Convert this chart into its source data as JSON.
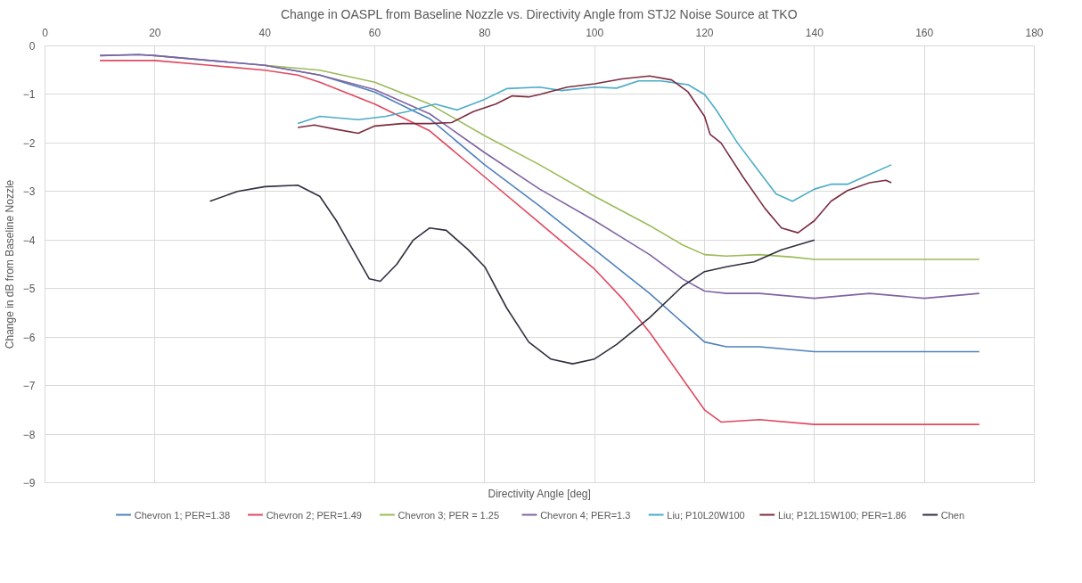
{
  "chart_data": {
    "type": "line",
    "title": "Change in OASPL from Baseline Nozzle vs. Directivity Angle from STJ2 Noise Source at TKO",
    "xlabel": "Directivity Angle [deg]",
    "ylabel": "Change in dB from Baseline Nozzle",
    "xlim": [
      0,
      180
    ],
    "xticks": [
      0,
      20,
      40,
      60,
      80,
      100,
      120,
      140,
      160,
      180
    ],
    "ylim": [
      -9,
      0
    ],
    "yticks": [
      -9,
      -8,
      -7,
      -6,
      -5,
      -4,
      -3,
      -2,
      -1,
      0
    ],
    "grid": true,
    "legend": "bottom",
    "marker": "none",
    "line_style": "solid",
    "series": [
      {
        "name": "Chevron 1; PER=1.38",
        "color": "#4f81bd",
        "x": [
          10,
          17,
          20,
          30,
          40,
          50,
          60,
          70,
          80,
          90,
          100,
          110,
          116,
          120,
          124,
          130,
          140,
          150,
          160,
          170
        ],
        "values": [
          -0.2,
          -0.18,
          -0.2,
          -0.3,
          -0.4,
          -0.6,
          -0.95,
          -1.5,
          -2.45,
          -3.3,
          -4.2,
          -5.1,
          -5.7,
          -6.1,
          -6.2,
          -6.2,
          -6.3,
          -6.3,
          -6.3,
          -6.3
        ]
      },
      {
        "name": "Chevron 2; PER=1.49",
        "color": "#e0485f",
        "x": [
          10,
          20,
          30,
          40,
          46,
          50,
          60,
          70,
          80,
          90,
          100,
          105,
          110,
          115,
          120,
          123,
          130,
          140,
          150,
          160,
          170
        ],
        "values": [
          -0.3,
          -0.3,
          -0.4,
          -0.5,
          -0.6,
          -0.75,
          -1.2,
          -1.75,
          -2.7,
          -3.65,
          -4.6,
          -5.2,
          -5.9,
          -6.7,
          -7.5,
          -7.75,
          -7.7,
          -7.8,
          -7.8,
          -7.8,
          -7.8
        ]
      },
      {
        "name": "Chevron 3; PER = 1.25",
        "color": "#9bbb59",
        "x": [
          40,
          50,
          60,
          70,
          80,
          90,
          100,
          110,
          116,
          120,
          124,
          130,
          136,
          140,
          150,
          160,
          170
        ],
        "values": [
          -0.4,
          -0.5,
          -0.75,
          -1.2,
          -1.85,
          -2.45,
          -3.1,
          -3.7,
          -4.1,
          -4.3,
          -4.33,
          -4.3,
          -4.35,
          -4.4,
          -4.4,
          -4.4,
          -4.4
        ]
      },
      {
        "name": "Chevron 4; PER=1.3",
        "color": "#8064a2",
        "x": [
          10,
          17,
          20,
          30,
          40,
          50,
          60,
          70,
          80,
          90,
          100,
          110,
          116,
          120,
          124,
          130,
          140,
          150,
          160,
          170
        ],
        "values": [
          -0.2,
          -0.18,
          -0.2,
          -0.3,
          -0.4,
          -0.6,
          -0.9,
          -1.4,
          -2.2,
          -2.95,
          -3.6,
          -4.3,
          -4.8,
          -5.05,
          -5.1,
          -5.1,
          -5.2,
          -5.1,
          -5.2,
          -5.1
        ]
      },
      {
        "name": "Liu; P10L20W100",
        "color": "#4bacc6",
        "x": [
          46,
          50,
          57,
          62,
          66,
          71,
          75,
          80,
          84,
          90,
          94,
          100,
          104,
          108,
          112,
          117,
          120,
          122,
          126,
          130,
          133,
          136,
          140,
          143,
          146,
          150,
          154
        ],
        "values": [
          -1.6,
          -1.45,
          -1.52,
          -1.45,
          -1.35,
          -1.2,
          -1.32,
          -1.1,
          -0.88,
          -0.85,
          -0.92,
          -0.85,
          -0.87,
          -0.72,
          -0.72,
          -0.8,
          -1.0,
          -1.3,
          -2.0,
          -2.6,
          -3.05,
          -3.2,
          -2.95,
          -2.85,
          -2.85,
          -2.65,
          -2.45
        ]
      },
      {
        "name": "Liu; P12L15W100; PER=1.86",
        "color": "#7b2c3f",
        "x": [
          46,
          49,
          53,
          57,
          60,
          65,
          70,
          74,
          78,
          82,
          85,
          88,
          90,
          95,
          100,
          105,
          110,
          114,
          117,
          120,
          121,
          123,
          127,
          131,
          134,
          137,
          140,
          143,
          146,
          150,
          153,
          154
        ],
        "values": [
          -1.68,
          -1.63,
          -1.72,
          -1.8,
          -1.65,
          -1.6,
          -1.6,
          -1.58,
          -1.35,
          -1.2,
          -1.03,
          -1.05,
          -1.0,
          -0.85,
          -0.78,
          -0.68,
          -0.62,
          -0.7,
          -0.95,
          -1.45,
          -1.82,
          -2.0,
          -2.7,
          -3.35,
          -3.75,
          -3.85,
          -3.6,
          -3.2,
          -2.98,
          -2.82,
          -2.77,
          -2.82
        ]
      },
      {
        "name": "Chen",
        "color": "#2f2f3f",
        "x": [
          30,
          35,
          40,
          46,
          50,
          53,
          56,
          59,
          61,
          64,
          67,
          70,
          73,
          77,
          80,
          84,
          88,
          92,
          96,
          100,
          104,
          110,
          116,
          120,
          124,
          129,
          134,
          140
        ],
        "values": [
          -3.2,
          -3.0,
          -2.9,
          -2.87,
          -3.1,
          -3.6,
          -4.2,
          -4.8,
          -4.85,
          -4.5,
          -4.0,
          -3.75,
          -3.8,
          -4.2,
          -4.55,
          -5.4,
          -6.1,
          -6.45,
          -6.55,
          -6.45,
          -6.15,
          -5.6,
          -4.95,
          -4.65,
          -4.55,
          -4.45,
          -4.2,
          -4.0
        ]
      }
    ]
  }
}
